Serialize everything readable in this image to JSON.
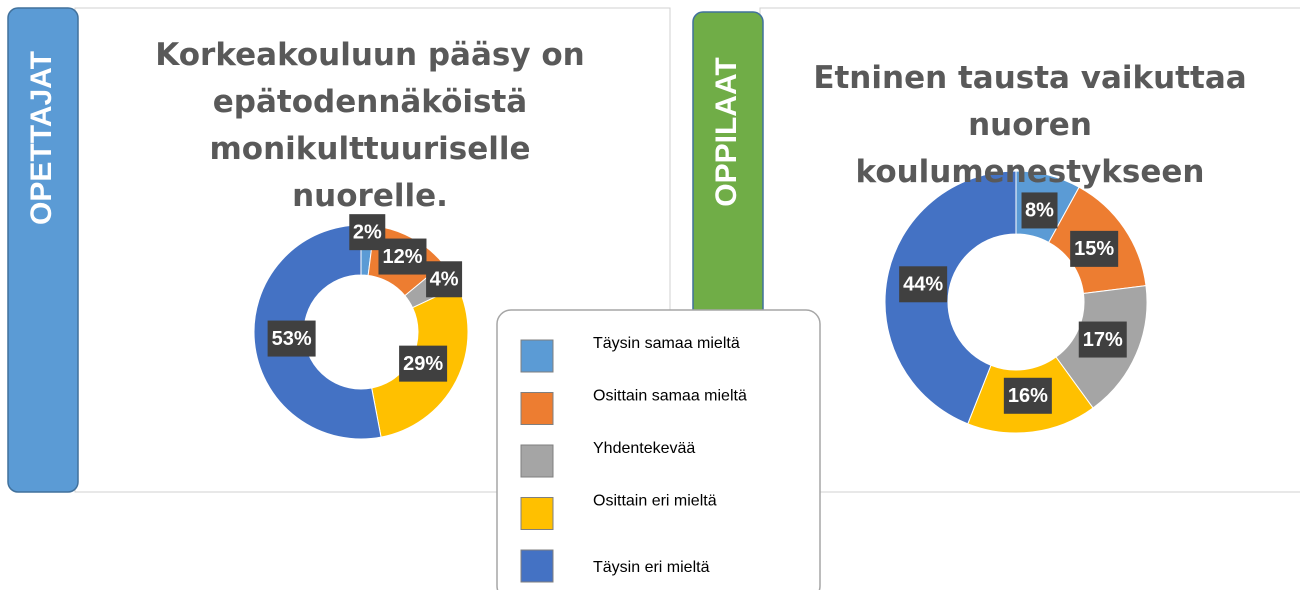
{
  "chart_data": [
    {
      "type": "donut",
      "label": "OPETTAJAT",
      "title": "Korkeakouluun pääsy on epätodennäköistä monikulttuuriselle nuorelle.",
      "categories": [
        "Täysin samaa mieltä",
        "Osittain samaa mieltä",
        "Yhdentekevää",
        "Osittain eri mieltä",
        "Täysin eri mieltä"
      ],
      "values": [
        2,
        12,
        4,
        29,
        53
      ],
      "value_labels": [
        "2%",
        "12%",
        "4%",
        "29%",
        "53%"
      ],
      "colors": [
        "#5b9bd5",
        "#ed7d31",
        "#a5a5a5",
        "#ffc000",
        "#4472c4"
      ],
      "tab_color": "#5b9bd5"
    },
    {
      "type": "donut",
      "label": "OPPILAAT",
      "title": "Etninen tausta vaikuttaa nuoren koulumenestykseen",
      "categories": [
        "Täysin samaa mieltä",
        "Osittain samaa mieltä",
        "Yhdentekevää",
        "Osittain eri mieltä",
        "Täysin eri mieltä"
      ],
      "values": [
        8,
        15,
        17,
        16,
        44
      ],
      "value_labels": [
        "8%",
        "15%",
        "17%",
        "16%",
        "44%"
      ],
      "colors": [
        "#5b9bd5",
        "#ed7d31",
        "#a5a5a5",
        "#ffc000",
        "#4472c4"
      ],
      "tab_color": "#70ad47"
    }
  ]
}
